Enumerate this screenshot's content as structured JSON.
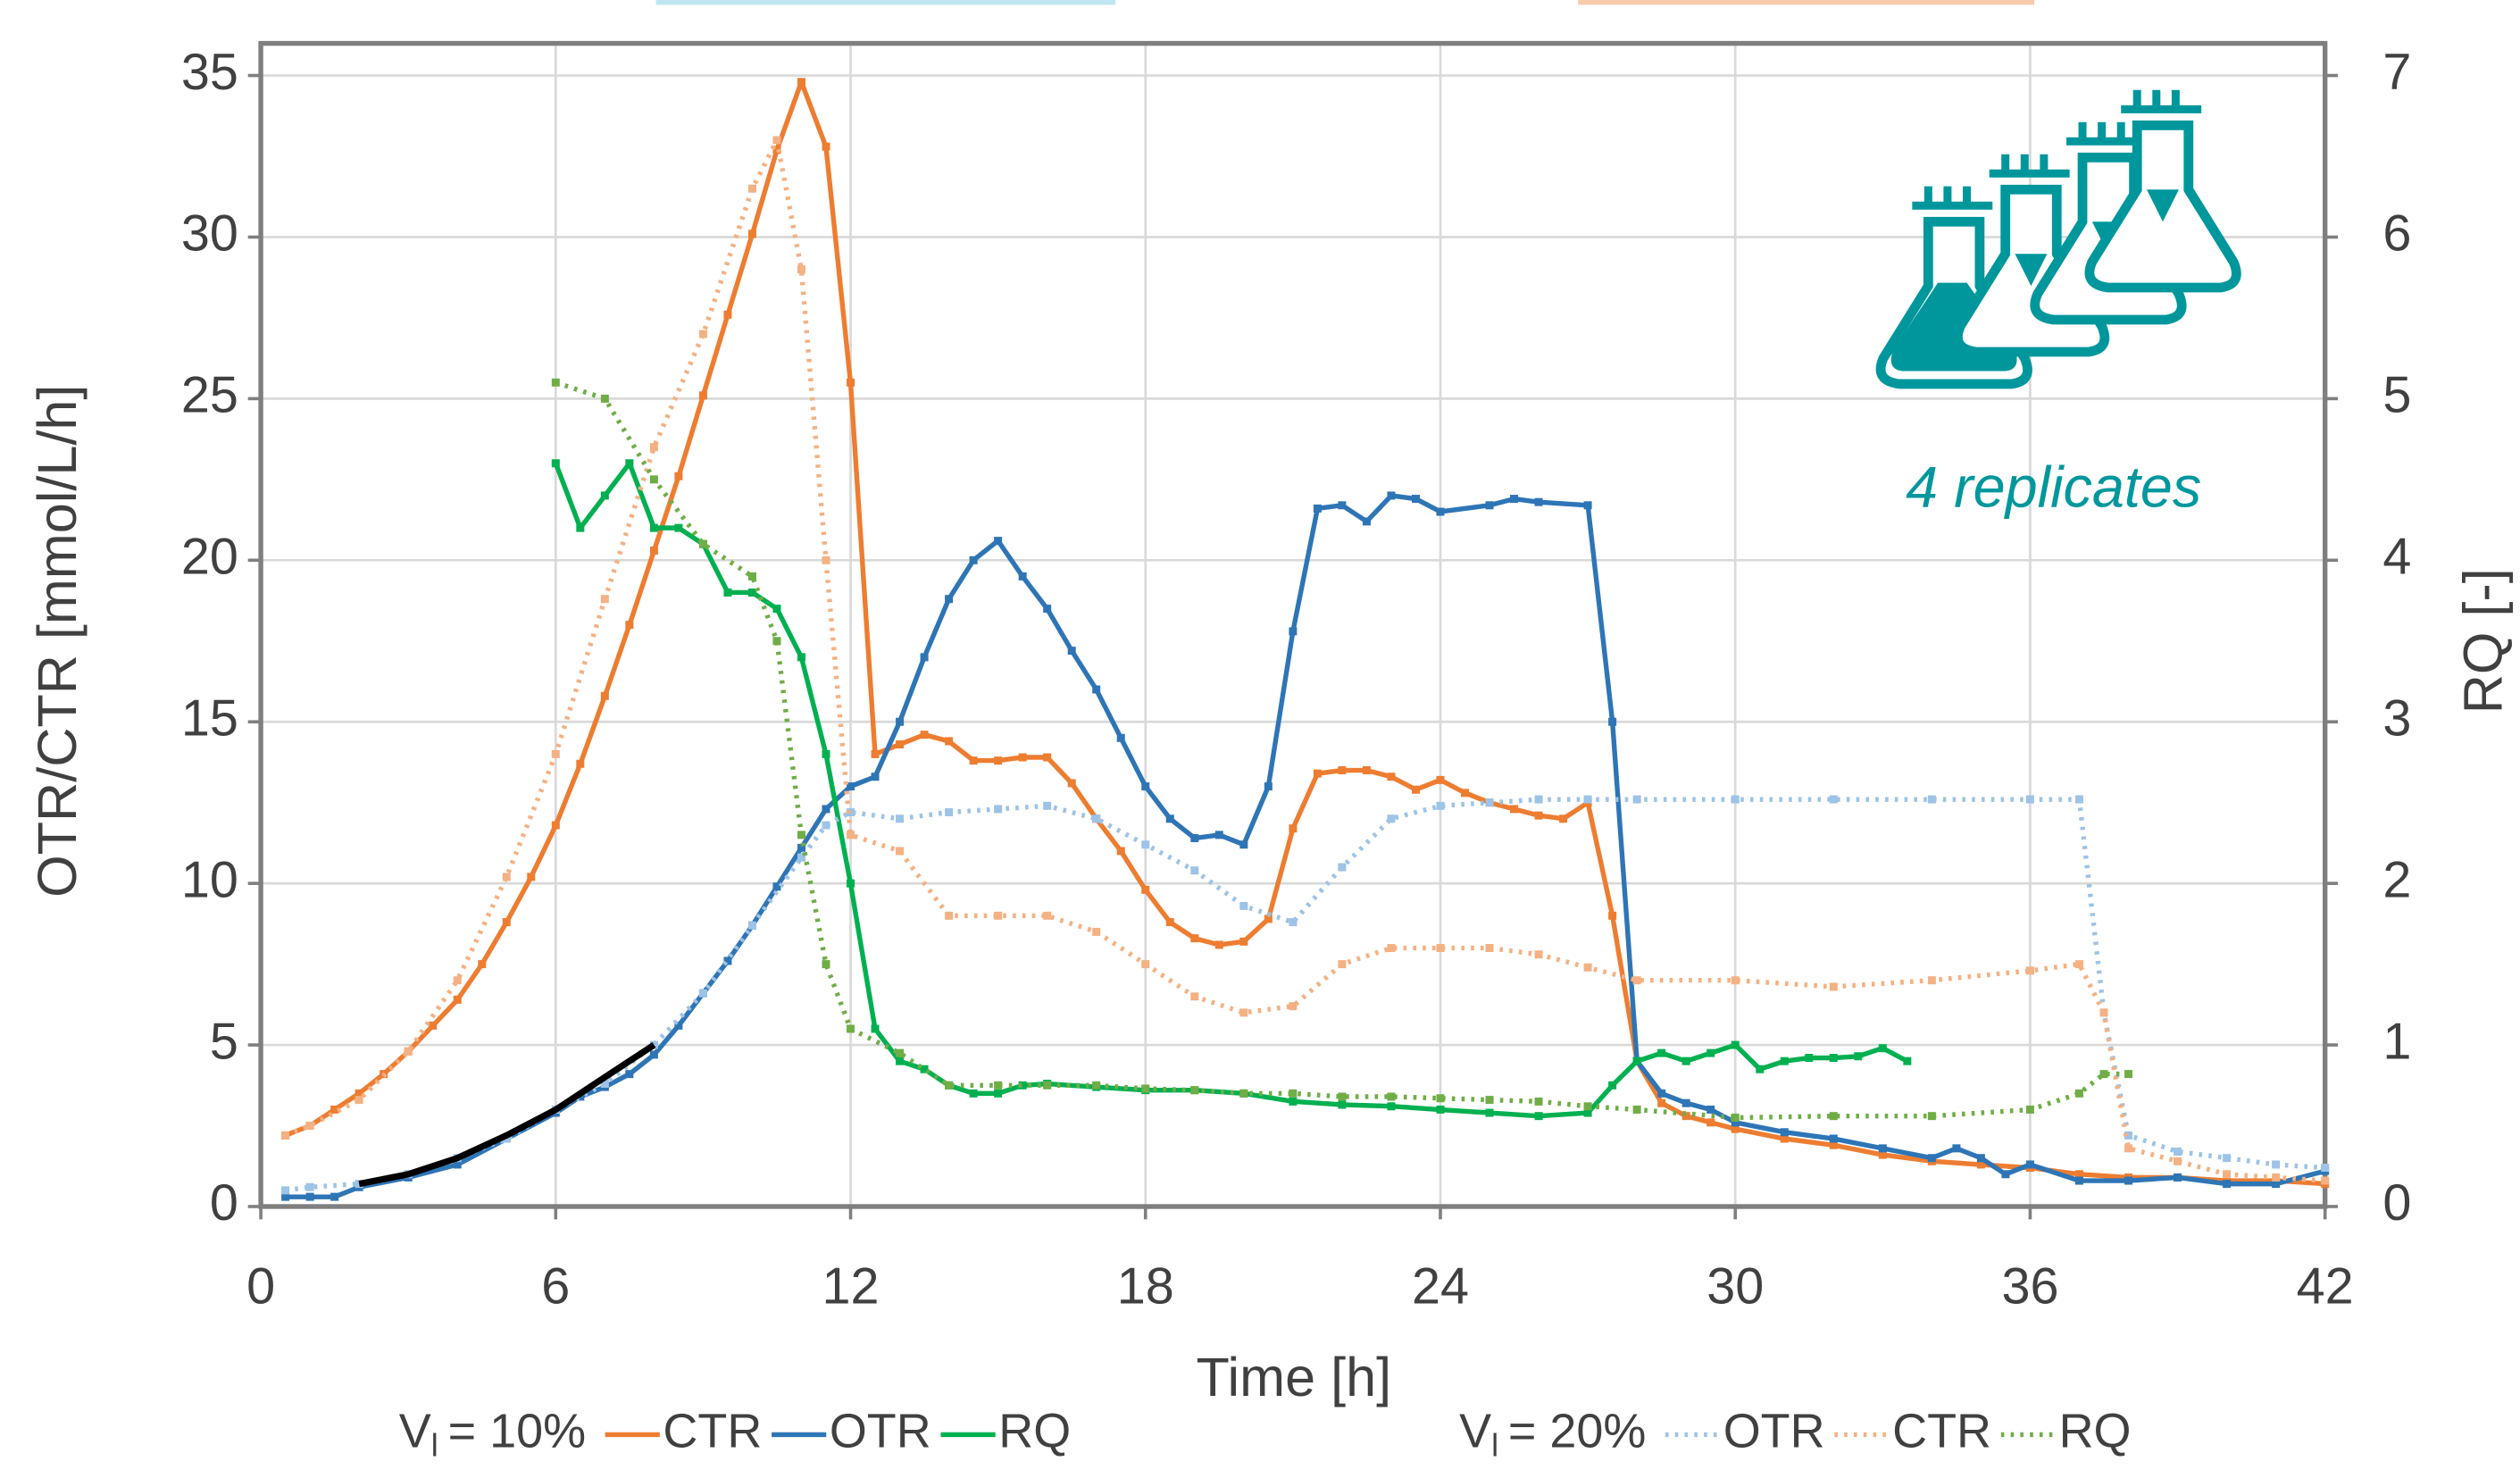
{
  "chart_data": {
    "type": "line",
    "xlabel": "Time   [h]",
    "ylabel": "OTR/CTR   [mmol/L/h]",
    "y2label": "RQ   [-]",
    "xlim": [
      0,
      42
    ],
    "xticks": [
      0,
      6,
      12,
      18,
      24,
      30,
      36,
      42
    ],
    "ylim": [
      0,
      35
    ],
    "yticks": [
      0,
      5,
      10,
      15,
      20,
      25,
      30,
      35
    ],
    "y2lim": [
      0,
      7
    ],
    "y2ticks": [
      0,
      1,
      2,
      3,
      4,
      5,
      6,
      7
    ],
    "grid": true,
    "annotation": "4 replicates",
    "legend_groups": [
      {
        "label": "V",
        "subscript": "l",
        "suffix": "= 10%"
      },
      {
        "label": "V",
        "subscript": "l",
        "suffix": "= 20%"
      }
    ],
    "series": [
      {
        "name": "CTR",
        "group": 0,
        "color": "#ed7d31",
        "style": "solid",
        "x": [
          0.5,
          1,
          1.5,
          2,
          2.5,
          3,
          3.5,
          4,
          4.5,
          5,
          5.5,
          6,
          6.5,
          7,
          7.5,
          8,
          8.5,
          9,
          9.5,
          10,
          10.5,
          11,
          11.5,
          12,
          12.5,
          13,
          13.5,
          14,
          14.5,
          15,
          15.5,
          16,
          16.5,
          17,
          17.5,
          18,
          18.5,
          19,
          19.5,
          20,
          20.5,
          21,
          21.5,
          22,
          22.5,
          23,
          23.5,
          24,
          24.5,
          25,
          25.5,
          26,
          26.5,
          27,
          27.5,
          28,
          28.5,
          29,
          29.5,
          30,
          31,
          32,
          33,
          34,
          35,
          36,
          37,
          38,
          39,
          40,
          41,
          42
        ],
        "values": [
          2.2,
          2.5,
          3.0,
          3.5,
          4.1,
          4.8,
          5.6,
          6.4,
          7.5,
          8.8,
          10.2,
          11.8,
          13.7,
          15.8,
          18.0,
          20.3,
          22.6,
          25.1,
          27.6,
          30.1,
          32.7,
          34.8,
          32.8,
          25.5,
          14.0,
          14.3,
          14.6,
          14.4,
          13.8,
          13.8,
          13.9,
          13.9,
          13.1,
          12.0,
          11.0,
          9.8,
          8.8,
          8.3,
          8.1,
          8.2,
          8.9,
          11.7,
          13.4,
          13.5,
          13.5,
          13.3,
          12.9,
          13.2,
          12.8,
          12.5,
          12.3,
          12.1,
          12.0,
          12.5,
          9.0,
          4.5,
          3.2,
          2.8,
          2.6,
          2.4,
          2.1,
          1.9,
          1.6,
          1.4,
          1.3,
          1.2,
          1.0,
          0.9,
          0.9,
          0.8,
          0.8,
          0.7
        ]
      },
      {
        "name": "OTR",
        "group": 0,
        "color": "#2e75b6",
        "style": "solid",
        "x": [
          0.5,
          1,
          1.5,
          2,
          3,
          4,
          5,
          6,
          6.5,
          7,
          7.5,
          8,
          8.5,
          9,
          9.5,
          10,
          10.5,
          11,
          11.5,
          12,
          12.5,
          13,
          13.5,
          14,
          14.5,
          15,
          15.5,
          16,
          16.5,
          17,
          17.5,
          18,
          18.5,
          19,
          19.5,
          20,
          20.5,
          21,
          21.5,
          22,
          22.5,
          23,
          23.5,
          24,
          25,
          25.5,
          26,
          27,
          27.5,
          28,
          28.5,
          29,
          29.5,
          30,
          31,
          32,
          33,
          34,
          34.5,
          35,
          35.5,
          36,
          37,
          38,
          39,
          40,
          41,
          42
        ],
        "values": [
          0.3,
          0.3,
          0.3,
          0.6,
          0.9,
          1.3,
          2.1,
          2.9,
          3.4,
          3.7,
          4.1,
          4.7,
          5.6,
          6.6,
          7.6,
          8.7,
          9.9,
          11.1,
          12.3,
          13.0,
          13.3,
          15.0,
          17.0,
          18.8,
          20.0,
          20.6,
          19.5,
          18.5,
          17.2,
          16.0,
          14.5,
          13.0,
          12.0,
          11.4,
          11.5,
          11.2,
          13.0,
          17.8,
          21.6,
          21.7,
          21.2,
          22.0,
          21.9,
          21.5,
          21.7,
          21.9,
          21.8,
          21.7,
          15.0,
          4.5,
          3.5,
          3.2,
          3.0,
          2.6,
          2.3,
          2.1,
          1.8,
          1.5,
          1.8,
          1.5,
          1.0,
          1.3,
          0.8,
          0.8,
          0.9,
          0.7,
          0.7,
          1.1
        ]
      },
      {
        "name": "RQ",
        "group": 0,
        "color": "#00b050",
        "style": "solid",
        "axis": "y2",
        "x": [
          6,
          6.5,
          7,
          7.5,
          8,
          8.5,
          9,
          9.5,
          10,
          10.5,
          11,
          11.5,
          12,
          12.5,
          13,
          13.5,
          14,
          14.5,
          15,
          15.5,
          16,
          17,
          18,
          19,
          20,
          21,
          22,
          23,
          24,
          25,
          26,
          27,
          27.5,
          28,
          28.5,
          29,
          29.5,
          30,
          30.5,
          31,
          31.5,
          32,
          32.5,
          33,
          33.5
        ],
        "values": [
          4.6,
          4.2,
          4.4,
          4.6,
          4.2,
          4.2,
          4.1,
          3.8,
          3.8,
          3.7,
          3.4,
          2.8,
          2.0,
          1.1,
          0.9,
          0.85,
          0.75,
          0.7,
          0.7,
          0.75,
          0.76,
          0.74,
          0.72,
          0.72,
          0.7,
          0.65,
          0.63,
          0.62,
          0.6,
          0.58,
          0.56,
          0.58,
          0.75,
          0.9,
          0.95,
          0.9,
          0.95,
          1.0,
          0.85,
          0.9,
          0.92,
          0.92,
          0.93,
          0.98,
          0.9
        ]
      },
      {
        "name": "OTR",
        "group": 1,
        "color": "#9dc3e6",
        "style": "dotted",
        "x": [
          0.5,
          1,
          2,
          3,
          4,
          5,
          6,
          7,
          8,
          9,
          10,
          11,
          11.5,
          12,
          13,
          14,
          15,
          16,
          17,
          18,
          19,
          20,
          21,
          22,
          23,
          24,
          25,
          26,
          27,
          28,
          30,
          32,
          34,
          36,
          37,
          37.5,
          38,
          39,
          40,
          41,
          42
        ],
        "values": [
          0.5,
          0.6,
          0.7,
          1.0,
          1.5,
          2.1,
          3.0,
          3.8,
          5.0,
          6.6,
          8.7,
          10.8,
          11.8,
          12.2,
          12.0,
          12.2,
          12.3,
          12.4,
          12.0,
          11.2,
          10.4,
          9.3,
          8.8,
          10.5,
          12.0,
          12.4,
          12.5,
          12.6,
          12.6,
          12.6,
          12.6,
          12.6,
          12.6,
          12.6,
          12.6,
          6.0,
          2.2,
          1.7,
          1.5,
          1.3,
          1.2
        ]
      },
      {
        "name": "CTR",
        "group": 1,
        "color": "#f4b183",
        "style": "dotted",
        "x": [
          0.5,
          1,
          2,
          3,
          4,
          5,
          6,
          7,
          8,
          9,
          10,
          10.5,
          11,
          11.5,
          12,
          13,
          14,
          15,
          16,
          17,
          18,
          19,
          20,
          21,
          22,
          23,
          24,
          25,
          26,
          27,
          28,
          30,
          32,
          34,
          36,
          37,
          37.5,
          38,
          39,
          40,
          41,
          42
        ],
        "values": [
          2.2,
          2.5,
          3.3,
          4.8,
          7.0,
          10.2,
          14.0,
          18.8,
          23.5,
          27.0,
          31.5,
          33.0,
          29.0,
          20.0,
          11.5,
          11.0,
          9.0,
          9.0,
          9.0,
          8.5,
          7.5,
          6.5,
          6.0,
          6.2,
          7.5,
          8.0,
          8.0,
          8.0,
          7.8,
          7.4,
          7.0,
          7.0,
          6.8,
          7.0,
          7.3,
          7.5,
          6.0,
          1.8,
          1.4,
          1.0,
          0.9,
          0.8
        ]
      },
      {
        "name": "RQ",
        "group": 1,
        "color": "#70ad47",
        "style": "dotted",
        "axis": "y2",
        "x": [
          6,
          7,
          8,
          9,
          10,
          10.5,
          11,
          11.5,
          12,
          13,
          14,
          15,
          16,
          17,
          18,
          19,
          20,
          21,
          22,
          23,
          24,
          25,
          26,
          27,
          28,
          30,
          32,
          34,
          36,
          37,
          37.5,
          38
        ],
        "values": [
          5.1,
          5.0,
          4.5,
          4.1,
          3.9,
          3.5,
          2.3,
          1.5,
          1.1,
          0.95,
          0.75,
          0.75,
          0.75,
          0.75,
          0.73,
          0.72,
          0.7,
          0.7,
          0.68,
          0.68,
          0.67,
          0.66,
          0.65,
          0.62,
          0.6,
          0.55,
          0.56,
          0.56,
          0.6,
          0.7,
          0.82,
          0.82
        ]
      },
      {
        "color": "#000000",
        "style": "fit",
        "x": [
          2,
          3,
          4,
          5,
          6,
          7,
          8
        ],
        "values": [
          0.7,
          1.0,
          1.5,
          2.2,
          3.0,
          4.0,
          5.0
        ]
      }
    ]
  }
}
